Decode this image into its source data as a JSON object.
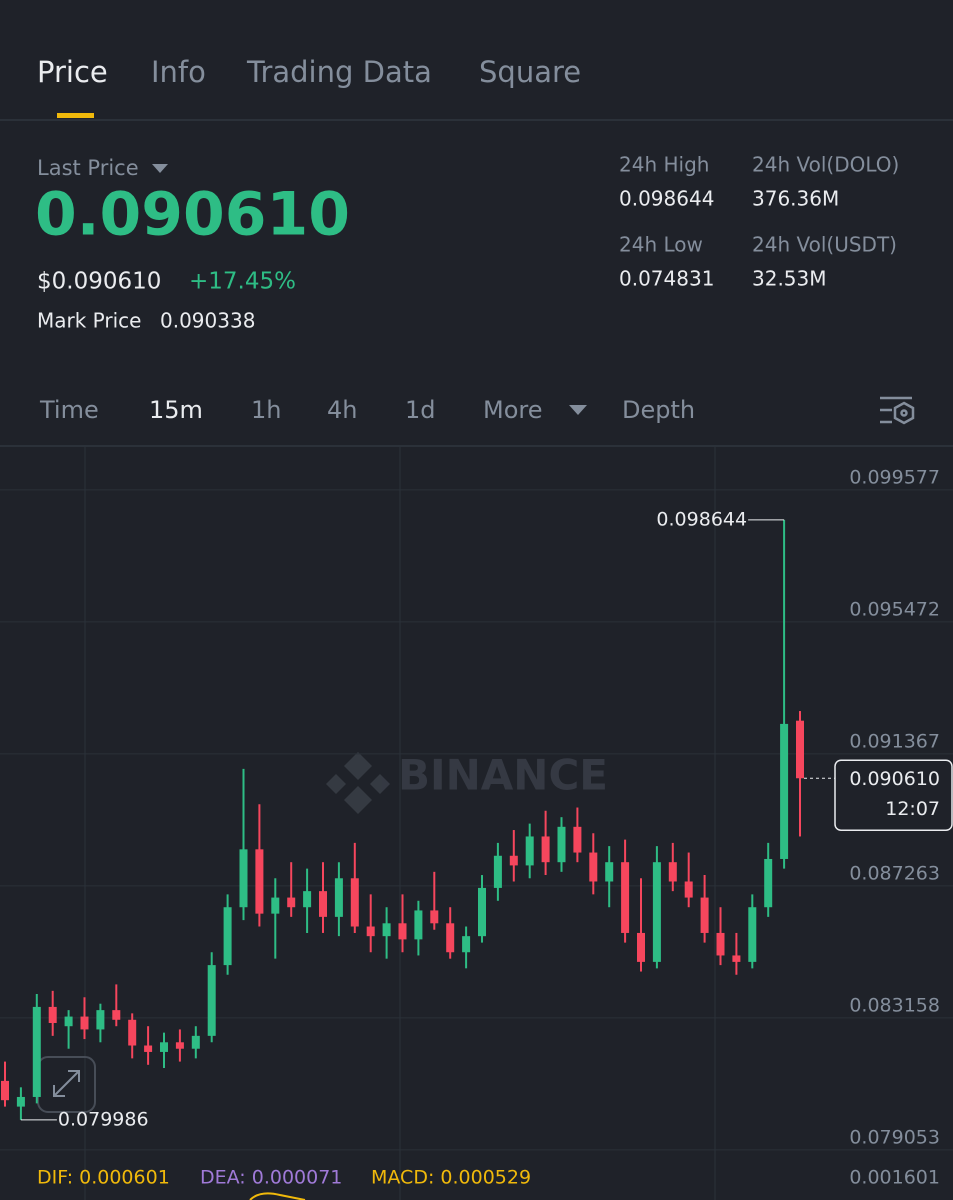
{
  "tabs": [
    "Price",
    "Info",
    "Trading Data",
    "Square"
  ],
  "ticker": {
    "last_price_label": "Last Price",
    "last_price": "0.090610",
    "usd_price": "$0.090610",
    "change": "+17.45%",
    "mark_price_label": "Mark Price",
    "mark_price": "0.090338",
    "stats": [
      {
        "label": "24h High",
        "value": "0.098644"
      },
      {
        "label": "24h Vol(DOLO)",
        "value": "376.36M"
      },
      {
        "label": "24h Low",
        "value": "0.074831"
      },
      {
        "label": "24h Vol(USDT)",
        "value": "32.53M"
      }
    ]
  },
  "intervals": [
    "Time",
    "15m",
    "1h",
    "4h",
    "1d",
    "More",
    "Depth"
  ],
  "chart_data": {
    "type": "candlestick",
    "watermark": "BINANCE",
    "up_color": "#2ebd85",
    "down_color": "#f6465d",
    "grid": true,
    "ylim": [
      0.07874,
      0.10091
    ],
    "yticks": [
      0.099577,
      0.095472,
      0.091367,
      0.087263,
      0.083158,
      0.079053
    ],
    "open": [
      0.0812,
      0.0804,
      0.0807,
      0.0835,
      0.0829,
      0.0832,
      0.0828,
      0.0834,
      0.0831,
      0.0823,
      0.0821,
      0.0824,
      0.0822,
      0.0826,
      0.0848,
      0.0866,
      0.0884,
      0.0864,
      0.0869,
      0.0866,
      0.0871,
      0.0863,
      0.0875,
      0.086,
      0.0857,
      0.0861,
      0.0856,
      0.0865,
      0.0861,
      0.0852,
      0.0857,
      0.0872,
      0.0882,
      0.0879,
      0.0888,
      0.088,
      0.0891,
      0.0883,
      0.0874,
      0.088,
      0.0858,
      0.0849,
      0.088,
      0.0874,
      0.0869,
      0.0858,
      0.0851,
      0.0849,
      0.0866,
      0.0881,
      0.0924
    ],
    "high": [
      0.0818,
      0.081,
      0.0839,
      0.084,
      0.0834,
      0.0838,
      0.0836,
      0.0842,
      0.0833,
      0.0829,
      0.0827,
      0.0828,
      0.0829,
      0.0852,
      0.087,
      0.0909,
      0.0898,
      0.0875,
      0.088,
      0.0878,
      0.088,
      0.088,
      0.0886,
      0.087,
      0.0866,
      0.087,
      0.0868,
      0.0877,
      0.0866,
      0.086,
      0.0876,
      0.0886,
      0.089,
      0.0892,
      0.0896,
      0.0894,
      0.0897,
      0.0889,
      0.0885,
      0.0887,
      0.0875,
      0.0885,
      0.0886,
      0.0883,
      0.0876,
      0.0866,
      0.0858,
      0.087,
      0.0886,
      0.098644,
      0.0927
    ],
    "low": [
      0.0804,
      0.079986,
      0.0805,
      0.0826,
      0.0822,
      0.0825,
      0.0824,
      0.0829,
      0.0819,
      0.0817,
      0.0816,
      0.0818,
      0.0819,
      0.0824,
      0.0845,
      0.0862,
      0.086,
      0.085,
      0.0863,
      0.0858,
      0.0858,
      0.0857,
      0.0858,
      0.0852,
      0.085,
      0.0852,
      0.0851,
      0.0859,
      0.085,
      0.0847,
      0.0855,
      0.0868,
      0.0874,
      0.0875,
      0.0876,
      0.0877,
      0.088,
      0.087,
      0.0866,
      0.0855,
      0.0846,
      0.0847,
      0.0871,
      0.0866,
      0.0855,
      0.0848,
      0.0845,
      0.0847,
      0.0863,
      0.0878,
      0.0888
    ],
    "close": [
      0.0806,
      0.0807,
      0.0835,
      0.083,
      0.0832,
      0.0828,
      0.0834,
      0.0831,
      0.0823,
      0.0821,
      0.0824,
      0.0822,
      0.0826,
      0.0848,
      0.0866,
      0.0884,
      0.0864,
      0.0869,
      0.0866,
      0.0871,
      0.0863,
      0.0875,
      0.086,
      0.0857,
      0.0861,
      0.0856,
      0.0865,
      0.0861,
      0.0852,
      0.0857,
      0.0872,
      0.0882,
      0.0879,
      0.0888,
      0.088,
      0.0891,
      0.0883,
      0.0874,
      0.088,
      0.0858,
      0.0849,
      0.088,
      0.0874,
      0.0869,
      0.0858,
      0.0851,
      0.0849,
      0.0866,
      0.0881,
      0.0923,
      0.09061
    ],
    "high_label": "0.098644",
    "low_label": "0.079986",
    "last_label": "0.090610",
    "countdown": "12:07",
    "indicator": {
      "dif": "DIF: 0.000601",
      "dea": "DEA: 0.000071",
      "macd": "MACD: 0.000529",
      "axis_label": "0.001601"
    }
  }
}
